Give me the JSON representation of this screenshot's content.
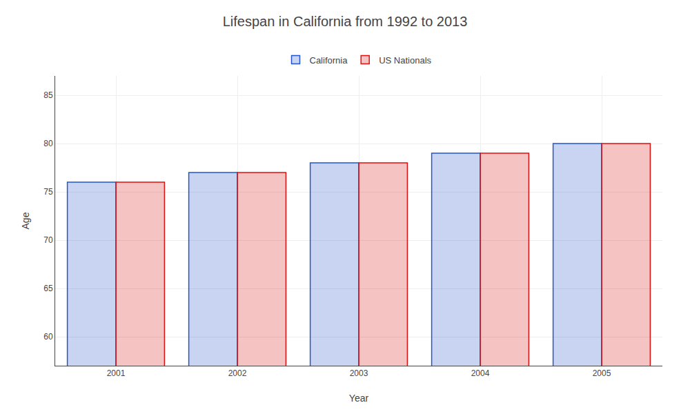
{
  "chart_data": {
    "type": "bar",
    "title": "Lifespan in California from 1992 to 2013",
    "xlabel": "Year",
    "ylabel": "Age",
    "categories": [
      "2001",
      "2002",
      "2003",
      "2004",
      "2005"
    ],
    "series": [
      {
        "name": "California",
        "color": "#2255cc",
        "values": [
          76,
          77,
          78,
          79,
          80
        ]
      },
      {
        "name": "US Nationals",
        "color": "#dd1111",
        "values": [
          76,
          77,
          78,
          79,
          80
        ]
      }
    ],
    "ylim": [
      57,
      87
    ],
    "yticks": [
      60,
      65,
      70,
      75,
      80,
      85
    ],
    "grid": true,
    "legend": "top"
  }
}
